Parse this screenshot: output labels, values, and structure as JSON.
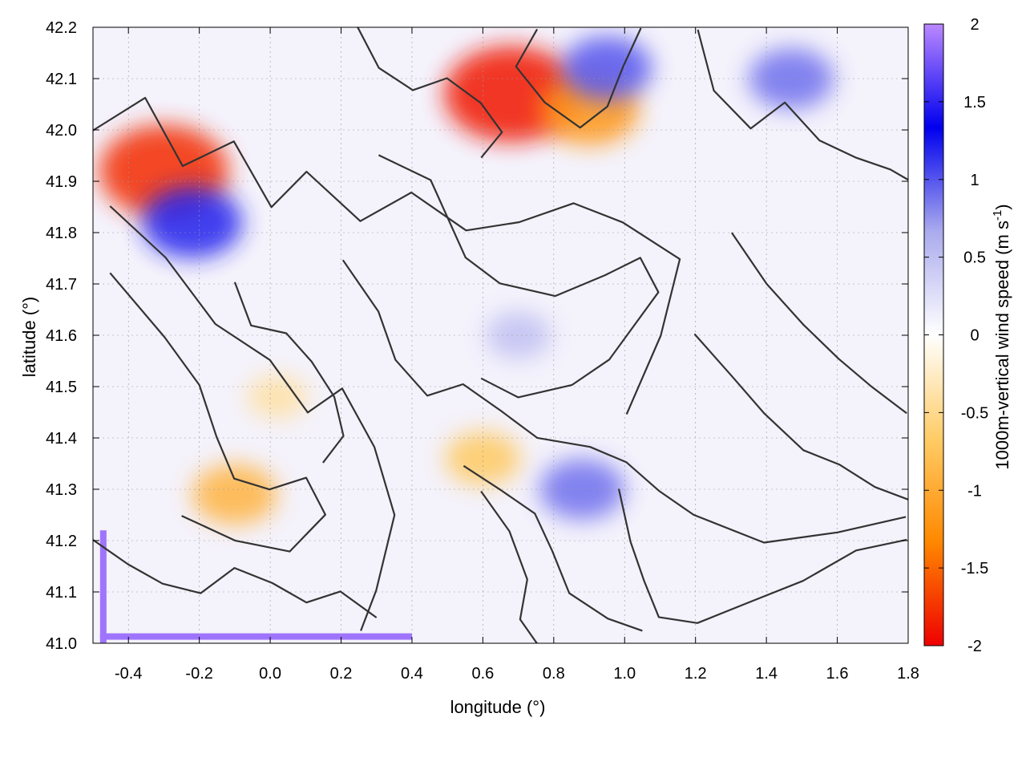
{
  "chart_data": {
    "type": "heatmap",
    "title": "",
    "xlabel": "longitude (°)",
    "ylabel": "latitude (°)",
    "xlim": [
      -0.5,
      1.8
    ],
    "ylim": [
      41.0,
      42.2
    ],
    "xticks": [
      "-0.4",
      "-0.2",
      "0.0",
      "0.2",
      "0.4",
      "0.6",
      "0.8",
      "1.0",
      "1.2",
      "1.4",
      "1.6",
      "1.8"
    ],
    "yticks": [
      "41.0",
      "41.1",
      "41.2",
      "41.3",
      "41.4",
      "41.5",
      "41.6",
      "41.7",
      "41.8",
      "41.9",
      "42.0",
      "42.1",
      "42.2"
    ],
    "grid": true,
    "colorbar": {
      "label_main": "1000m-vertical wind speed (m s",
      "label_sup": "-1",
      "label_close": ")",
      "range": [
        -2,
        2
      ],
      "ticks": [
        "2",
        "1.5",
        "1",
        "0.5",
        "0",
        "-0.5",
        "-1",
        "-1.5",
        "-2"
      ],
      "colors": [
        "#ee0000",
        "#ff8800",
        "#ffcc66",
        "#ffffff",
        "#aaaaee",
        "#0000ee",
        "#bb88ff"
      ]
    },
    "contour_color": "#333333",
    "features": [
      {
        "lon": -0.3,
        "lat": 41.92,
        "value": -1.8
      },
      {
        "lon": 0.68,
        "lat": 42.07,
        "value": -1.9
      },
      {
        "lon": 0.9,
        "lat": 42.04,
        "value": -1.2
      },
      {
        "lon": -0.1,
        "lat": 41.29,
        "value": -0.9
      },
      {
        "lon": 0.6,
        "lat": 41.36,
        "value": -0.7
      },
      {
        "lon": 0.02,
        "lat": 41.48,
        "value": -0.4
      },
      {
        "lon": -0.22,
        "lat": 41.82,
        "value": 1.2
      },
      {
        "lon": 0.95,
        "lat": 42.12,
        "value": 1.0
      },
      {
        "lon": 1.47,
        "lat": 42.1,
        "value": 0.9
      },
      {
        "lon": 0.7,
        "lat": 41.6,
        "value": 0.5
      },
      {
        "lon": 0.88,
        "lat": 41.3,
        "value": 0.9
      }
    ]
  }
}
